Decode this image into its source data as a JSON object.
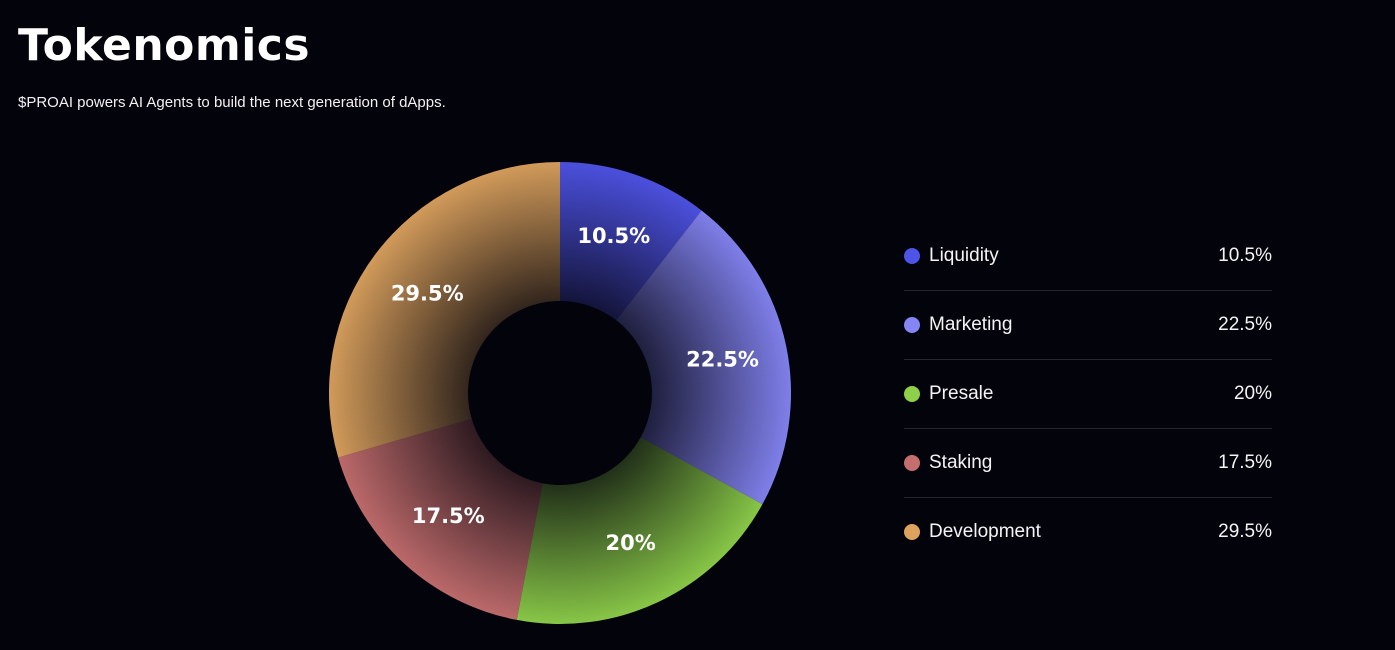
{
  "header": {
    "title": "Tokenomics",
    "subtitle": "$PROAI powers AI Agents to build the next generation of dApps."
  },
  "chart_data": {
    "type": "pie",
    "style": "donut",
    "categories": [
      "Liquidity",
      "Marketing",
      "Presale",
      "Staking",
      "Development"
    ],
    "values": [
      10.5,
      22.5,
      20,
      17.5,
      29.5
    ],
    "labels": [
      "10.5%",
      "22.5%",
      "20%",
      "17.5%",
      "29.5%"
    ],
    "colors": [
      "#4f54e8",
      "#8585f5",
      "#8ed04a",
      "#c56e6e",
      "#dca25e"
    ],
    "legend_placement": "right"
  }
}
